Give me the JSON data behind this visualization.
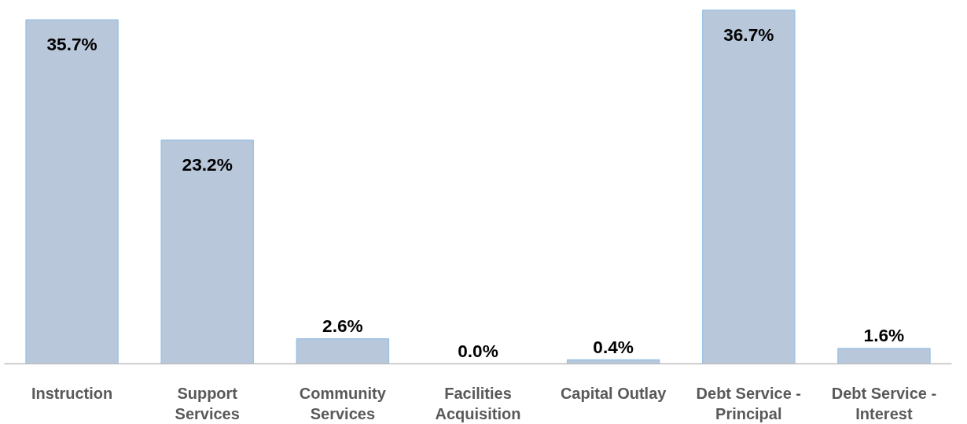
{
  "chart_data": {
    "type": "bar",
    "categories": [
      "Instruction",
      "Support Services",
      "Community Services",
      "Facilities Acquisition",
      "Capital Outlay",
      "Debt Service - Principal",
      "Debt Service - Interest"
    ],
    "values": [
      35.7,
      23.2,
      2.6,
      0.0,
      0.4,
      36.7,
      1.6
    ],
    "value_labels": [
      "35.7%",
      "23.2%",
      "2.6%",
      "0.0%",
      "0.4%",
      "36.7%",
      "1.6%"
    ],
    "color": "#b8c7d9",
    "grid": false
  }
}
